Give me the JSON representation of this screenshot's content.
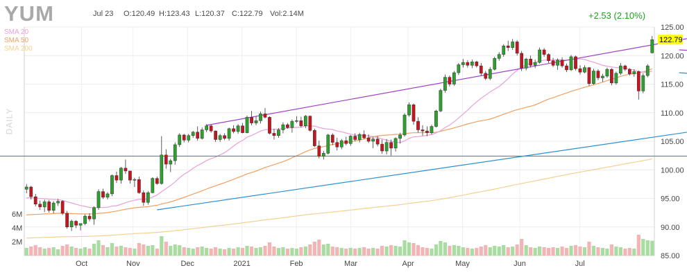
{
  "header": {
    "ticker": "YUM",
    "date": "Jul 23",
    "open": "O:120.49",
    "high": "H:123.43",
    "low": "L:120.37",
    "close": "C:122.79",
    "volume": "Vol:2.14M",
    "change": "+2.53 (2.10%)",
    "period": "DAILY"
  },
  "legend": [
    {
      "label": "SMA 20",
      "color": "#e8a0d8"
    },
    {
      "label": "SMA 50",
      "color": "#f0a060"
    },
    {
      "label": "SMA 200",
      "color": "#f5d090"
    }
  ],
  "colors": {
    "up": "#2ea02e",
    "down": "#c8141e",
    "vol_up": "#a8dca0",
    "vol_down": "#f2b4b4",
    "trend_purple": "#a040c8",
    "trend_blue": "#2890d0",
    "support": "#7070c8"
  },
  "chart_data": {
    "type": "candlestick",
    "title": "YUM",
    "ylim": [
      85,
      125
    ],
    "y_ticks": [
      125,
      120,
      115,
      110,
      105,
      100,
      95,
      90,
      85
    ],
    "volume_ticks": [
      "6M",
      "4M",
      "2M"
    ],
    "x_labels": [
      "Oct",
      "Nov",
      "Dec",
      "2021",
      "Feb",
      "Mar",
      "Apr",
      "May",
      "Jun",
      "Jul"
    ],
    "last_price": "122.79",
    "candles": [
      [
        96.6,
        97.5,
        95.9,
        97.0,
        1.1
      ],
      [
        97.0,
        97.2,
        94.8,
        95.3,
        1.3
      ],
      [
        95.3,
        95.8,
        93.6,
        94.0,
        1.5
      ],
      [
        94.0,
        94.6,
        93.0,
        93.5,
        1.2
      ],
      [
        93.5,
        94.8,
        92.6,
        94.4,
        1.0
      ],
      [
        94.4,
        94.7,
        92.5,
        92.9,
        1.1
      ],
      [
        92.9,
        94.5,
        92.4,
        94.2,
        1.2
      ],
      [
        94.2,
        94.9,
        93.7,
        94.5,
        0.9
      ],
      [
        94.5,
        94.7,
        92.1,
        92.4,
        1.4
      ],
      [
        92.4,
        92.8,
        89.7,
        90.0,
        1.6
      ],
      [
        90.0,
        91.3,
        89.3,
        91.0,
        1.3
      ],
      [
        91.0,
        91.2,
        89.8,
        90.3,
        1.1
      ],
      [
        90.3,
        90.6,
        89.4,
        90.6,
        1.0
      ],
      [
        90.6,
        92.2,
        90.3,
        91.9,
        1.2
      ],
      [
        91.9,
        92.4,
        91.0,
        91.4,
        1.0
      ],
      [
        91.4,
        93.6,
        90.4,
        93.4,
        1.7
      ],
      [
        93.4,
        96.6,
        93.0,
        96.2,
        2.2
      ],
      [
        96.2,
        96.7,
        94.9,
        95.2,
        1.5
      ],
      [
        95.2,
        96.1,
        94.8,
        95.8,
        1.2
      ],
      [
        95.8,
        99.2,
        95.4,
        99.0,
        1.8
      ],
      [
        99.0,
        99.7,
        97.7,
        98.2,
        1.3
      ],
      [
        98.2,
        100.5,
        97.6,
        100.3,
        1.4
      ],
      [
        100.3,
        101.8,
        99.3,
        99.8,
        1.2
      ],
      [
        99.8,
        99.8,
        97.6,
        98.2,
        1.1
      ],
      [
        98.2,
        98.6,
        97.0,
        98.3,
        1.0
      ],
      [
        98.3,
        98.8,
        95.8,
        96.0,
        1.8
      ],
      [
        96.0,
        96.4,
        93.7,
        94.3,
        1.6
      ],
      [
        94.3,
        96.3,
        93.9,
        96.0,
        1.4
      ],
      [
        96.0,
        98.7,
        95.9,
        98.5,
        1.5
      ],
      [
        98.5,
        98.8,
        97.4,
        97.6,
        1.0
      ],
      [
        97.6,
        105.9,
        97.4,
        102.6,
        2.8
      ],
      [
        102.6,
        103.6,
        100.2,
        101.0,
        2.0
      ],
      [
        101.0,
        101.9,
        99.6,
        101.6,
        1.4
      ],
      [
        101.6,
        104.8,
        100.9,
        104.4,
        1.6
      ],
      [
        104.4,
        106.4,
        104.0,
        106.1,
        1.5
      ],
      [
        106.1,
        106.3,
        104.8,
        105.2,
        1.2
      ],
      [
        105.2,
        106.3,
        104.8,
        106.0,
        1.1
      ],
      [
        106.0,
        106.8,
        105.6,
        106.6,
        1.0
      ],
      [
        106.6,
        107.6,
        105.1,
        105.5,
        1.2
      ],
      [
        105.5,
        107.4,
        105.3,
        107.0,
        1.3
      ],
      [
        107.0,
        108.0,
        106.6,
        107.7,
        1.1
      ],
      [
        107.7,
        107.9,
        106.5,
        106.8,
        1.0
      ],
      [
        106.8,
        106.9,
        104.9,
        105.3,
        1.2
      ],
      [
        105.3,
        106.3,
        104.9,
        106.0,
        1.0
      ],
      [
        106.0,
        106.4,
        105.2,
        105.5,
        0.9
      ],
      [
        105.5,
        107.4,
        105.1,
        107.2,
        1.1
      ],
      [
        107.2,
        107.8,
        106.4,
        106.7,
        1.0
      ],
      [
        106.7,
        108.0,
        106.3,
        107.7,
        1.2
      ],
      [
        107.7,
        108.2,
        106.4,
        106.5,
        1.1
      ],
      [
        106.5,
        109.5,
        106.4,
        109.2,
        1.4
      ],
      [
        109.2,
        110.3,
        107.8,
        108.2,
        1.3
      ],
      [
        108.2,
        109.3,
        107.8,
        108.6,
        1.1
      ],
      [
        108.6,
        110.2,
        108.1,
        109.8,
        1.2
      ],
      [
        109.8,
        110.8,
        109.0,
        109.2,
        1.4
      ],
      [
        109.2,
        109.4,
        106.2,
        106.4,
        1.9
      ],
      [
        106.4,
        107.2,
        105.3,
        106.0,
        1.3
      ],
      [
        106.0,
        107.3,
        105.6,
        107.0,
        1.1
      ],
      [
        107.0,
        108.3,
        106.4,
        107.9,
        1.2
      ],
      [
        107.9,
        108.2,
        107.2,
        107.4,
        1.0
      ],
      [
        107.4,
        108.8,
        106.5,
        108.5,
        1.1
      ],
      [
        108.5,
        109.4,
        108.2,
        108.6,
        1.0
      ],
      [
        108.6,
        109.3,
        107.4,
        107.7,
        1.2
      ],
      [
        107.7,
        109.6,
        107.3,
        109.4,
        1.3
      ],
      [
        109.4,
        109.5,
        106.7,
        106.9,
        1.6
      ],
      [
        106.9,
        107.2,
        104.0,
        104.2,
        2.0
      ],
      [
        104.2,
        105.1,
        102.0,
        102.4,
        2.3
      ],
      [
        102.4,
        103.3,
        101.8,
        102.9,
        1.6
      ],
      [
        102.9,
        106.3,
        102.7,
        106.1,
        1.7
      ],
      [
        106.1,
        106.4,
        104.3,
        104.8,
        1.3
      ],
      [
        104.8,
        105.6,
        103.4,
        104.0,
        1.2
      ],
      [
        104.0,
        105.4,
        103.6,
        105.1,
        1.1
      ],
      [
        105.1,
        105.8,
        104.3,
        104.6,
        1.0
      ],
      [
        104.6,
        106.1,
        104.2,
        105.9,
        1.1
      ],
      [
        105.9,
        106.4,
        105.0,
        105.3,
        1.0
      ],
      [
        105.3,
        106.5,
        104.8,
        106.2,
        1.1
      ],
      [
        106.2,
        106.9,
        105.4,
        105.6,
        1.2
      ],
      [
        105.6,
        106.2,
        104.7,
        105.0,
        1.0
      ],
      [
        105.0,
        105.8,
        103.8,
        105.4,
        1.1
      ],
      [
        105.4,
        105.9,
        104.1,
        104.5,
        1.0
      ],
      [
        104.5,
        105.3,
        102.8,
        103.3,
        1.4
      ],
      [
        103.3,
        105.4,
        102.7,
        104.8,
        1.3
      ],
      [
        104.8,
        105.3,
        102.5,
        103.8,
        1.5
      ],
      [
        103.8,
        105.7,
        103.2,
        105.5,
        1.4
      ],
      [
        105.5,
        106.5,
        104.6,
        106.1,
        1.3
      ],
      [
        106.1,
        109.9,
        105.8,
        109.6,
        2.2
      ],
      [
        109.6,
        111.8,
        109.3,
        111.4,
        1.9
      ],
      [
        111.4,
        111.6,
        107.9,
        108.5,
        1.8
      ],
      [
        108.5,
        109.2,
        106.5,
        107.0,
        1.5
      ],
      [
        107.0,
        107.8,
        106.0,
        106.8,
        1.2
      ],
      [
        106.8,
        107.6,
        105.9,
        106.5,
        1.1
      ],
      [
        106.5,
        107.9,
        106.2,
        107.6,
        1.0
      ],
      [
        107.6,
        110.5,
        107.4,
        110.3,
        1.6
      ],
      [
        110.3,
        114.2,
        110.1,
        113.9,
        2.1
      ],
      [
        113.9,
        116.7,
        113.5,
        116.2,
        1.9
      ],
      [
        116.2,
        116.5,
        114.6,
        115.0,
        1.4
      ],
      [
        115.0,
        117.3,
        114.7,
        117.0,
        1.5
      ],
      [
        117.0,
        118.7,
        116.6,
        118.4,
        1.4
      ],
      [
        118.4,
        119.4,
        117.9,
        118.8,
        1.2
      ],
      [
        118.8,
        119.2,
        117.9,
        118.3,
        1.1
      ],
      [
        118.3,
        119.3,
        117.8,
        118.9,
        1.0
      ],
      [
        118.9,
        119.1,
        117.9,
        118.2,
        1.1
      ],
      [
        118.2,
        118.7,
        116.5,
        116.9,
        1.3
      ],
      [
        116.9,
        117.3,
        115.7,
        116.0,
        1.5
      ],
      [
        116.0,
        118.0,
        115.7,
        117.6,
        1.2
      ],
      [
        117.6,
        119.8,
        117.4,
        119.5,
        1.4
      ],
      [
        119.5,
        120.6,
        119.1,
        120.2,
        1.3
      ],
      [
        120.2,
        122.0,
        119.8,
        121.7,
        1.5
      ],
      [
        121.7,
        122.6,
        120.8,
        121.4,
        1.2
      ],
      [
        121.4,
        122.9,
        121.0,
        122.4,
        1.3
      ],
      [
        122.4,
        122.7,
        120.0,
        120.4,
        1.6
      ],
      [
        120.4,
        120.8,
        117.3,
        117.8,
        2.4
      ],
      [
        117.8,
        119.6,
        117.4,
        119.4,
        1.5
      ],
      [
        119.4,
        120.0,
        117.9,
        118.3,
        1.2
      ],
      [
        118.3,
        119.3,
        117.8,
        118.8,
        1.1
      ],
      [
        118.8,
        121.4,
        118.6,
        121.0,
        1.3
      ],
      [
        121.0,
        121.3,
        119.8,
        120.2,
        1.2
      ],
      [
        120.2,
        120.4,
        118.7,
        119.1,
        1.1
      ],
      [
        119.1,
        119.6,
        118.0,
        118.3,
        1.2
      ],
      [
        118.3,
        119.5,
        117.5,
        119.2,
        1.1
      ],
      [
        119.2,
        119.7,
        117.9,
        118.2,
        1.3
      ],
      [
        118.2,
        118.6,
        117.1,
        117.5,
        1.1
      ],
      [
        117.5,
        120.1,
        117.3,
        119.8,
        1.4
      ],
      [
        119.8,
        120.0,
        117.4,
        117.7,
        1.5
      ],
      [
        117.7,
        118.3,
        116.7,
        117.1,
        1.3
      ],
      [
        117.1,
        118.3,
        116.9,
        117.9,
        1.2
      ],
      [
        117.9,
        118.0,
        114.7,
        115.1,
        2.0
      ],
      [
        115.1,
        117.7,
        114.9,
        117.3,
        1.4
      ],
      [
        117.3,
        117.6,
        115.7,
        116.1,
        1.2
      ],
      [
        116.1,
        116.8,
        115.4,
        116.4,
        1.1
      ],
      [
        116.4,
        117.9,
        116.1,
        117.6,
        1.0
      ],
      [
        117.6,
        117.8,
        114.8,
        115.2,
        1.6
      ],
      [
        115.2,
        117.2,
        114.9,
        116.9,
        1.3
      ],
      [
        116.9,
        118.7,
        116.6,
        118.2,
        1.2
      ],
      [
        118.2,
        118.4,
        117.3,
        117.6,
        1.0
      ],
      [
        117.6,
        117.8,
        116.5,
        116.8,
        1.1
      ],
      [
        116.8,
        117.6,
        116.3,
        117.2,
        1.0
      ],
      [
        117.2,
        117.4,
        112.3,
        113.8,
        3.0
      ],
      [
        113.8,
        116.9,
        113.4,
        116.5,
        2.4
      ],
      [
        116.5,
        118.5,
        116.2,
        118.2,
        2.2
      ],
      [
        120.49,
        123.43,
        120.37,
        122.79,
        2.14
      ]
    ]
  }
}
